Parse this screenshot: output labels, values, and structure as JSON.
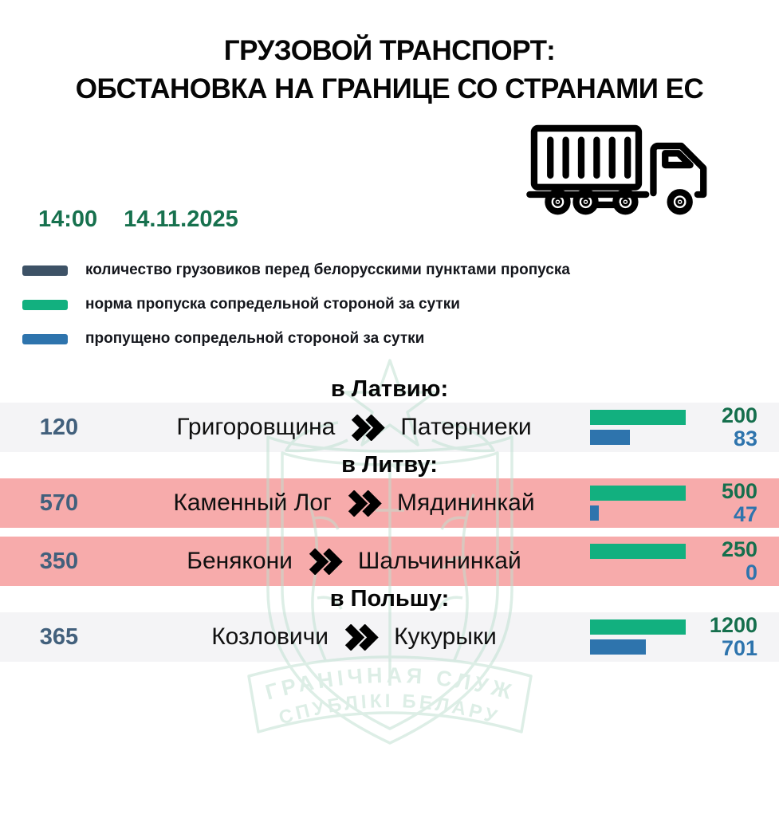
{
  "title": {
    "line1": "ГРУЗОВОЙ ТРАНСПОРТ:",
    "line2": "ОБСТАНОВКА НА ГРАНИЦЕ СО СТРАНАМИ ЕС"
  },
  "timestamp": {
    "time": "14:00",
    "date": "14.11.2025"
  },
  "legend": [
    {
      "color": "#3d5266",
      "label": "количество грузовиков перед белорусскими пунктами пропуска"
    },
    {
      "color": "#12b07f",
      "label": "норма пропуска сопредельной стороной за сутки"
    },
    {
      "color": "#2e74ad",
      "label": "пропущено сопредельной стороной за сутки"
    }
  ],
  "sections": [
    {
      "header": "в Латвию:",
      "rows": [
        {
          "queue": 120,
          "from": "Григоровщина",
          "to": "Патерниеки",
          "norm": 200,
          "passed": 83,
          "highlight": false
        }
      ]
    },
    {
      "header": "в Литву:",
      "rows": [
        {
          "queue": 570,
          "from": "Каменный Лог",
          "to": "Мядининкай",
          "norm": 500,
          "passed": 47,
          "highlight": true
        },
        {
          "queue": 350,
          "from": "Бенякони",
          "to": "Шальчининкай",
          "norm": 250,
          "passed": 0,
          "highlight": true
        }
      ]
    },
    {
      "header": "в Польшу:",
      "rows": [
        {
          "queue": 365,
          "from": "Козловичи",
          "to": "Кукурыки",
          "norm": 1200,
          "passed": 701,
          "highlight": false
        }
      ]
    }
  ],
  "watermark": {
    "line1": "ПАГРАНІЧНАЯ СЛУЖБА",
    "line2": "РЭСПУБЛІКІ БЕЛАРУСЬ"
  },
  "colors": {
    "navy": "#3d5266",
    "green_bar": "#12b07f",
    "blue_bar": "#2e74ad",
    "green_value_text": "#156f4d",
    "slate_queue_text": "#42607c",
    "pink_row": "#f7abab",
    "gray_row": "#f4f4f6",
    "time_text": "#17714e",
    "watermark_teal": "#bfe0d1"
  },
  "chart_data": {
    "type": "bar",
    "title": "ГРУЗОВОЙ ТРАНСПОРТ: ОБСТАНОВКА НА ГРАНИЦЕ СО СТРАНАМИ ЕС",
    "timestamp": "14:00 14.11.2025",
    "legend": [
      "количество грузовиков перед белорусскими пунктами пропуска",
      "норма пропуска сопредельной стороной за сутки",
      "пропущено сопредельной стороной за сутки"
    ],
    "groups": [
      {
        "destination": "в Латвию:",
        "from": "Григоровщина",
        "to": "Патерниеки",
        "queue_trucks": 120,
        "daily_norm": 200,
        "passed_per_day": 83,
        "highlighted": false
      },
      {
        "destination": "в Литву:",
        "from": "Каменный Лог",
        "to": "Мядининкай",
        "queue_trucks": 570,
        "daily_norm": 500,
        "passed_per_day": 47,
        "highlighted": true
      },
      {
        "destination": "в Литву:",
        "from": "Бенякони",
        "to": "Шальчининкай",
        "queue_trucks": 350,
        "daily_norm": 250,
        "passed_per_day": 0,
        "highlighted": true
      },
      {
        "destination": "в Польшу:",
        "from": "Козловичи",
        "to": "Кукурыки",
        "queue_trucks": 365,
        "daily_norm": 1200,
        "passed_per_day": 701,
        "highlighted": false
      }
    ]
  }
}
